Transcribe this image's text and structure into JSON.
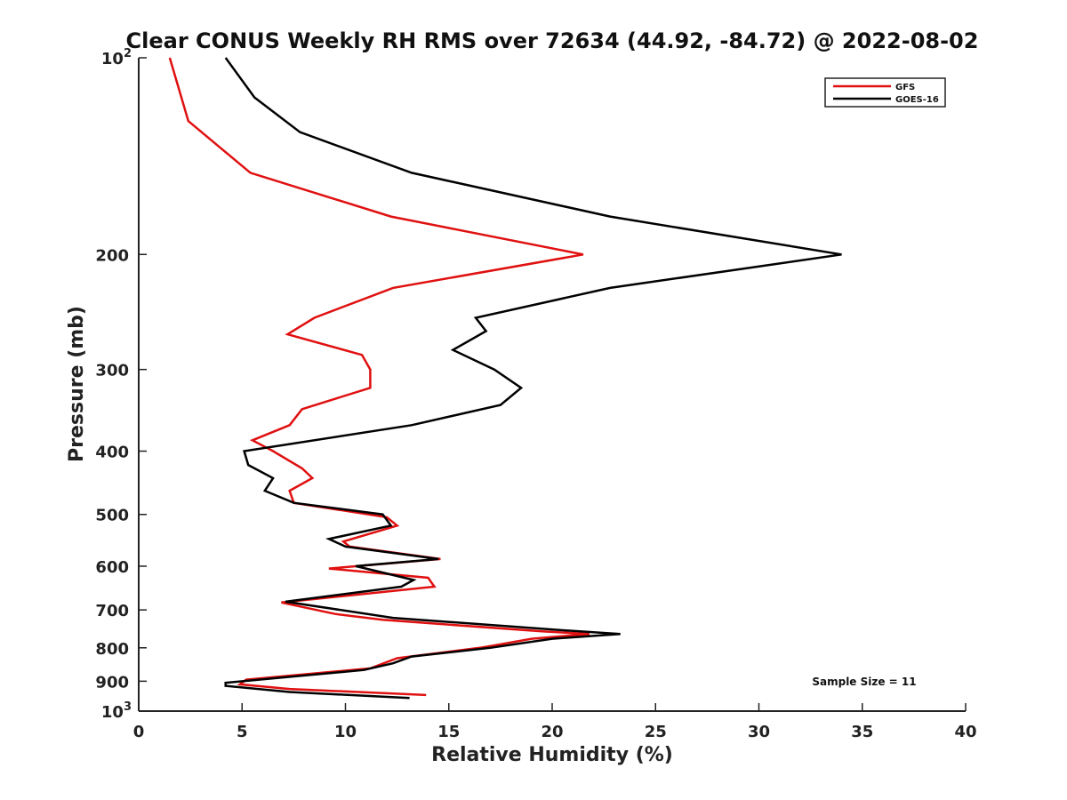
{
  "chart_data": {
    "type": "line",
    "title": "Clear CONUS Weekly RH RMS over 72634 (44.92, -84.72) @ 2022-08-02",
    "xlabel": "Relative Humidity (%)",
    "ylabel": "Pressure (mb)",
    "xlim": [
      0,
      40
    ],
    "ylim": [
      100,
      1000
    ],
    "yscale": "log",
    "y_reversed": true,
    "x_ticks": [
      0,
      5,
      10,
      15,
      20,
      25,
      30,
      35,
      40
    ],
    "x_tick_labels": [
      "0",
      "5",
      "10",
      "15",
      "20",
      "25",
      "30",
      "35",
      "40"
    ],
    "y_ticks": [
      100,
      200,
      300,
      400,
      500,
      600,
      700,
      800,
      900,
      1000
    ],
    "y_tick_labels": [
      {
        "base": "10",
        "sup": "2"
      },
      {
        "base": "200",
        "sup": ""
      },
      {
        "base": "300",
        "sup": ""
      },
      {
        "base": "400",
        "sup": ""
      },
      {
        "base": "500",
        "sup": ""
      },
      {
        "base": "600",
        "sup": ""
      },
      {
        "base": "700",
        "sup": ""
      },
      {
        "base": "800",
        "sup": ""
      },
      {
        "base": "900",
        "sup": ""
      },
      {
        "base": "10",
        "sup": "3"
      }
    ],
    "legend_position": "top-right",
    "annotation": "Sample Size = 11",
    "series": [
      {
        "name": "GFS",
        "color": "#e01010",
        "points": [
          [
            1.5,
            100
          ],
          [
            2.4,
            125
          ],
          [
            5.4,
            150
          ],
          [
            12.2,
            175
          ],
          [
            21.5,
            200
          ],
          [
            12.3,
            225
          ],
          [
            8.5,
            250
          ],
          [
            7.2,
            265
          ],
          [
            10.8,
            285
          ],
          [
            11.2,
            300
          ],
          [
            11.2,
            320
          ],
          [
            7.9,
            345
          ],
          [
            7.3,
            365
          ],
          [
            5.5,
            385
          ],
          [
            6.5,
            400
          ],
          [
            7.9,
            425
          ],
          [
            8.4,
            440
          ],
          [
            7.3,
            460
          ],
          [
            7.5,
            480
          ],
          [
            12.0,
            505
          ],
          [
            12.5,
            520
          ],
          [
            9.9,
            550
          ],
          [
            10.2,
            560
          ],
          [
            14.6,
            585
          ],
          [
            9.2,
            605
          ],
          [
            14.0,
            625
          ],
          [
            14.3,
            645
          ],
          [
            6.9,
            682
          ],
          [
            9.5,
            710
          ],
          [
            11.8,
            725
          ],
          [
            19.5,
            755
          ],
          [
            21.8,
            762
          ],
          [
            19.0,
            775
          ],
          [
            17.5,
            790
          ],
          [
            16.5,
            800
          ],
          [
            12.5,
            830
          ],
          [
            11.2,
            860
          ],
          [
            5.2,
            895
          ],
          [
            4.9,
            910
          ],
          [
            7.3,
            925
          ],
          [
            13.9,
            945
          ]
        ]
      },
      {
        "name": "GOES-16",
        "color": "#000000",
        "points": [
          [
            4.2,
            100
          ],
          [
            5.6,
            115
          ],
          [
            7.8,
            130
          ],
          [
            13.2,
            150
          ],
          [
            22.8,
            175
          ],
          [
            34.0,
            200
          ],
          [
            22.8,
            225
          ],
          [
            16.3,
            250
          ],
          [
            16.8,
            262
          ],
          [
            15.2,
            280
          ],
          [
            17.2,
            300
          ],
          [
            18.5,
            320
          ],
          [
            17.5,
            340
          ],
          [
            13.2,
            365
          ],
          [
            5.1,
            400
          ],
          [
            5.3,
            420
          ],
          [
            6.5,
            440
          ],
          [
            6.1,
            460
          ],
          [
            7.5,
            480
          ],
          [
            11.8,
            500
          ],
          [
            12.2,
            520
          ],
          [
            9.2,
            545
          ],
          [
            10.0,
            560
          ],
          [
            14.5,
            585
          ],
          [
            10.5,
            600
          ],
          [
            13.3,
            630
          ],
          [
            12.7,
            645
          ],
          [
            7.1,
            680
          ],
          [
            12.3,
            720
          ],
          [
            20.5,
            752
          ],
          [
            23.3,
            762
          ],
          [
            20.0,
            775
          ],
          [
            17.0,
            800
          ],
          [
            13.2,
            825
          ],
          [
            12.3,
            845
          ],
          [
            10.9,
            865
          ],
          [
            4.2,
            905
          ],
          [
            4.2,
            915
          ],
          [
            7.3,
            935
          ],
          [
            13.1,
            955
          ]
        ]
      }
    ]
  }
}
